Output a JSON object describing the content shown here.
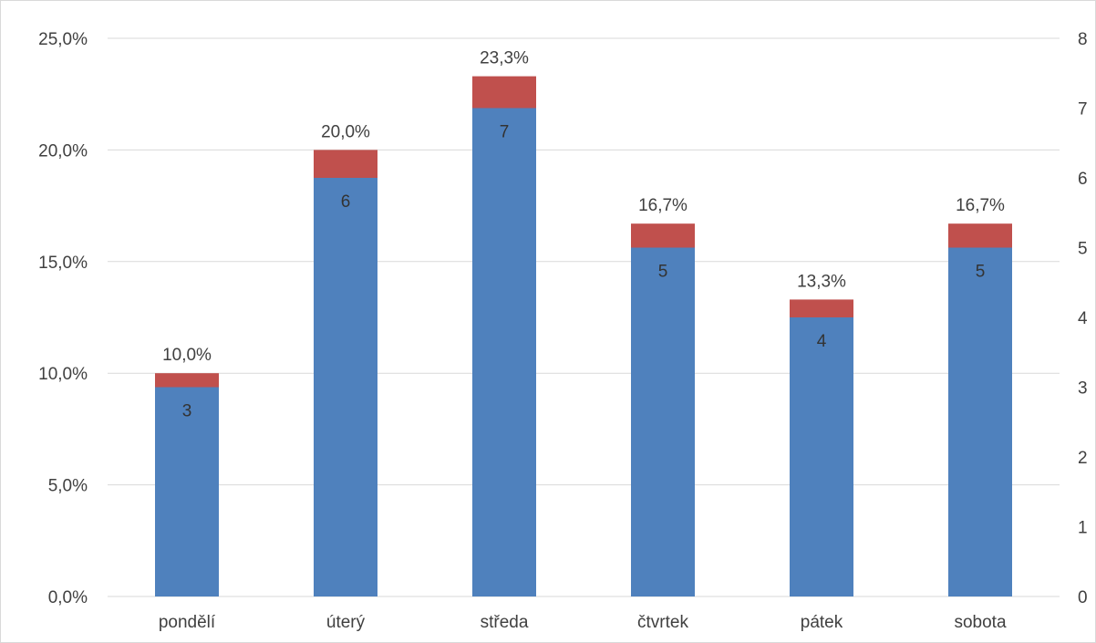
{
  "chart_data": {
    "type": "bar",
    "stacked": true,
    "categories": [
      "pondělí",
      "úterý",
      "středa",
      "čtvrtek",
      "pátek",
      "sobota"
    ],
    "series": [
      {
        "values": [
          3,
          6,
          7,
          5,
          4,
          5
        ],
        "axis": "right",
        "color": "#4F81BD"
      },
      {
        "values": [
          10.0,
          20.0,
          23.3,
          16.7,
          13.3,
          16.7
        ],
        "axis": "left",
        "color": "#C0504D"
      }
    ],
    "percent_labels": [
      "10,0%",
      "20,0%",
      "23,3%",
      "16,7%",
      "13,3%",
      "16,7%"
    ],
    "count_labels": [
      "3",
      "6",
      "7",
      "5",
      "4",
      "5"
    ],
    "y_left": {
      "ylim": [
        0,
        25
      ],
      "ticks": [
        0,
        5,
        10,
        15,
        20,
        25
      ],
      "tick_labels": [
        "0,0%",
        "5,0%",
        "10,0%",
        "15,0%",
        "20,0%",
        "25,0%"
      ]
    },
    "y_right": {
      "ylim": [
        0,
        8
      ],
      "ticks": [
        0,
        1,
        2,
        3,
        4,
        5,
        6,
        7,
        8
      ],
      "tick_labels": [
        "0",
        "1",
        "2",
        "3",
        "4",
        "5",
        "6",
        "7",
        "8"
      ]
    },
    "grid": true,
    "legend": "none",
    "colors": {
      "grid": "#D9D9D9",
      "text": "#404040"
    }
  }
}
